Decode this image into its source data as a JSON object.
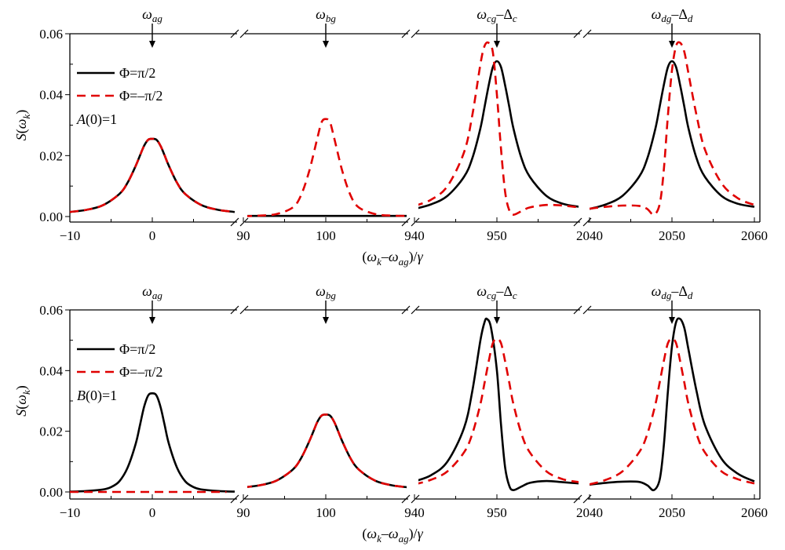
{
  "chart_data": [
    {
      "type": "line",
      "panel": "top",
      "annotation": "A(0)=1",
      "annotation_italic_part": "A",
      "annotation_rest": "(0)=1",
      "ylabel": "S(ω_k)",
      "ylabel_parts": {
        "main": "S(ω",
        "sub": "k",
        "end": ")"
      },
      "xlabel": "(ω_k−ω_ag)/γ",
      "xlabel_parts": {
        "open": "(ω",
        "sub1": "k",
        "mid": "–ω",
        "sub2": "ag",
        "close": ")/γ"
      },
      "ylim": [
        0,
        0.06
      ],
      "yticks": [
        "0.00",
        "0.02",
        "0.04",
        "0.06"
      ],
      "ytick_values": [
        0,
        0.02,
        0.04,
        0.06
      ],
      "grid": false,
      "legend_position": "top-left",
      "legend": [
        {
          "label": "Φ=π/2",
          "style": "solid",
          "color": "#000000"
        },
        {
          "label": "Φ=–π/2",
          "style": "dashed",
          "color": "#e00000"
        }
      ],
      "segments": [
        {
          "xlim": [
            -10,
            10
          ],
          "xticks": [
            -10,
            0
          ],
          "xtick_labels": [
            "−10",
            "0"
          ],
          "peak_marker": {
            "x": 0,
            "label_main": "ω",
            "label_sub": "ag",
            "label_extra": "",
            "label_extra_sub": ""
          },
          "series": [
            {
              "name": "Φ=π/2",
              "x": [
                -10,
                -8,
                -6,
                -4,
                -3,
                -2,
                -1.5,
                -1,
                -0.5,
                0,
                0.5,
                1,
                1.5,
                2,
                3,
                4,
                6,
                8,
                10
              ],
              "y": [
                0.0015,
                0.0022,
                0.0037,
                0.0074,
                0.0111,
                0.0167,
                0.02,
                0.0232,
                0.0252,
                0.0255,
                0.0252,
                0.0232,
                0.02,
                0.0167,
                0.0111,
                0.0074,
                0.0037,
                0.0022,
                0.0015
              ]
            },
            {
              "name": "Φ=–π/2",
              "x": [
                -10,
                -8,
                -6,
                -4,
                -3,
                -2,
                -1.5,
                -1,
                -0.5,
                0,
                0.5,
                1,
                1.5,
                2,
                3,
                4,
                6,
                8,
                10
              ],
              "y": [
                0.0015,
                0.0022,
                0.0037,
                0.0074,
                0.0111,
                0.0167,
                0.02,
                0.0232,
                0.0252,
                0.0255,
                0.0252,
                0.0232,
                0.02,
                0.0167,
                0.0111,
                0.0074,
                0.0037,
                0.0022,
                0.0015
              ]
            }
          ]
        },
        {
          "xlim": [
            90,
            110
          ],
          "xticks": [
            90,
            100
          ],
          "xtick_labels": [
            "90",
            "100"
          ],
          "peak_marker": {
            "x": 100,
            "label_main": "ω",
            "label_sub": "bg",
            "label_extra": "",
            "label_extra_sub": ""
          },
          "series": [
            {
              "name": "Φ=π/2",
              "x": [
                90.5,
                110
              ],
              "y": [
                0.0002,
                0.0002
              ]
            },
            {
              "name": "Φ=–π/2",
              "x": [
                90,
                92,
                94,
                96,
                97,
                98,
                99,
                99.5,
                100,
                100.5,
                101,
                102,
                103,
                104,
                106,
                108,
                110
              ],
              "y": [
                0.0001,
                0.0003,
                0.0008,
                0.003,
                0.007,
                0.015,
                0.026,
                0.031,
                0.032,
                0.031,
                0.026,
                0.015,
                0.007,
                0.003,
                0.0008,
                0.0003,
                0.0002
              ]
            }
          ]
        },
        {
          "xlim": [
            940,
            960
          ],
          "xticks": [
            940,
            950
          ],
          "xtick_labels": [
            "940",
            "950"
          ],
          "peak_marker": {
            "x": 950,
            "label_main": "ω",
            "label_sub": "cg",
            "label_extra": "–Δ",
            "label_extra_sub": "c"
          },
          "series": [
            {
              "name": "Φ=π/2",
              "x": [
                940,
                942,
                944,
                946,
                947,
                948,
                948.5,
                949,
                949.5,
                950,
                950.5,
                951,
                951.5,
                952,
                953,
                954,
                956,
                958,
                960
              ],
              "y": [
                0.0025,
                0.004,
                0.0068,
                0.013,
                0.019,
                0.029,
                0.036,
                0.043,
                0.049,
                0.051,
                0.049,
                0.043,
                0.036,
                0.029,
                0.019,
                0.013,
                0.0068,
                0.0042,
                0.0032
              ]
            },
            {
              "name": "Φ=–π/2",
              "x": [
                940,
                942,
                944,
                946,
                947,
                948,
                948.5,
                949,
                949.5,
                950,
                950.5,
                951,
                951.5,
                952,
                953,
                954,
                956,
                958,
                960
              ],
              "y": [
                0.0035,
                0.0055,
                0.01,
                0.021,
                0.033,
                0.05,
                0.056,
                0.057,
                0.054,
                0.04,
                0.022,
                0.008,
                0.002,
                0.0006,
                0.0018,
                0.003,
                0.0038,
                0.0036,
                0.003
              ]
            }
          ]
        },
        {
          "xlim": [
            2040,
            2060
          ],
          "xticks": [
            2040,
            2050,
            2060
          ],
          "xtick_labels": [
            "2040",
            "2050",
            "2060"
          ],
          "peak_marker": {
            "x": 2050,
            "label_main": "ω",
            "label_sub": "dg",
            "label_extra": "–Δ",
            "label_extra_sub": "d"
          },
          "series": [
            {
              "name": "Φ=π/2",
              "x": [
                2040,
                2042,
                2044,
                2046,
                2047,
                2048,
                2048.5,
                2049,
                2049.5,
                2050,
                2050.5,
                2051,
                2051.5,
                2052,
                2053,
                2054,
                2056,
                2058,
                2060
              ],
              "y": [
                0.0025,
                0.004,
                0.0068,
                0.013,
                0.019,
                0.029,
                0.036,
                0.043,
                0.049,
                0.051,
                0.049,
                0.043,
                0.036,
                0.029,
                0.019,
                0.013,
                0.0068,
                0.0042,
                0.0032
              ]
            },
            {
              "name": "Φ=–π/2",
              "x": [
                2040,
                2042,
                2044,
                2046,
                2047,
                2047.8,
                2048.5,
                2049,
                2049.5,
                2050,
                2050.5,
                2051,
                2051.5,
                2052,
                2053,
                2054,
                2056,
                2058,
                2060
              ],
              "y": [
                0.0026,
                0.0032,
                0.0036,
                0.0035,
                0.0025,
                0.0006,
                0.004,
                0.015,
                0.033,
                0.048,
                0.056,
                0.057,
                0.054,
                0.047,
                0.033,
                0.022,
                0.011,
                0.006,
                0.0038
              ]
            }
          ]
        }
      ]
    },
    {
      "type": "line",
      "panel": "bottom",
      "annotation": "B(0)=1",
      "annotation_italic_part": "B",
      "annotation_rest": "(0)=1",
      "ylabel": "S(ω_k)",
      "ylabel_parts": {
        "main": "S(ω",
        "sub": "k",
        "end": ")"
      },
      "xlabel": "(ω_k−ω_ag)/γ",
      "xlabel_parts": {
        "open": "(ω",
        "sub1": "k",
        "mid": "–ω",
        "sub2": "ag",
        "close": ")/γ"
      },
      "ylim": [
        0,
        0.06
      ],
      "yticks": [
        "0.00",
        "0.02",
        "0.04",
        "0.06"
      ],
      "ytick_values": [
        0,
        0.02,
        0.04,
        0.06
      ],
      "grid": false,
      "legend_position": "top-left",
      "legend": [
        {
          "label": "Φ=π/2",
          "style": "solid",
          "color": "#000000"
        },
        {
          "label": "Φ=–π/2",
          "style": "dashed",
          "color": "#e00000"
        }
      ],
      "segments": [
        {
          "xlim": [
            -10,
            10
          ],
          "xticks": [
            -10,
            0
          ],
          "xtick_labels": [
            "−10",
            "0"
          ],
          "peak_marker": {
            "x": 0,
            "label_main": "ω",
            "label_sub": "ag",
            "label_extra": "",
            "label_extra_sub": ""
          },
          "series": [
            {
              "name": "Φ=π/2",
              "x": [
                -10,
                -8,
                -6,
                -5,
                -4,
                -3,
                -2,
                -1.5,
                -1,
                -0.5,
                0,
                0.5,
                1,
                1.5,
                2,
                3,
                4,
                5,
                6,
                8,
                10
              ],
              "y": [
                0.0001,
                0.0003,
                0.0008,
                0.0016,
                0.0035,
                0.008,
                0.016,
                0.022,
                0.028,
                0.0318,
                0.0325,
                0.0318,
                0.028,
                0.022,
                0.016,
                0.008,
                0.0035,
                0.0016,
                0.0008,
                0.0003,
                0.0001
              ]
            },
            {
              "name": "Φ=–π/2",
              "x": [
                -10,
                9
              ],
              "y": [
                0.0,
                0.0
              ]
            }
          ]
        },
        {
          "xlim": [
            90,
            110
          ],
          "xticks": [
            90,
            100
          ],
          "xtick_labels": [
            "90",
            "100"
          ],
          "peak_marker": {
            "x": 100,
            "label_main": "ω",
            "label_sub": "bg",
            "label_extra": "",
            "label_extra_sub": ""
          },
          "series": [
            {
              "name": "Φ=π/2",
              "x": [
                90,
                92,
                94,
                96,
                97,
                98,
                98.5,
                99,
                99.5,
                100,
                100.5,
                101,
                101.5,
                102,
                103,
                104,
                106,
                108,
                110
              ],
              "y": [
                0.0015,
                0.0022,
                0.0037,
                0.0074,
                0.0111,
                0.0167,
                0.02,
                0.0232,
                0.0252,
                0.0255,
                0.0252,
                0.0232,
                0.02,
                0.0167,
                0.0111,
                0.0074,
                0.0037,
                0.0022,
                0.0015
              ]
            },
            {
              "name": "Φ=–π/2",
              "x": [
                90,
                92,
                94,
                96,
                97,
                98,
                98.5,
                99,
                99.5,
                100,
                100.5,
                101,
                101.5,
                102,
                103,
                104,
                106,
                108,
                110
              ],
              "y": [
                0.0015,
                0.0022,
                0.0037,
                0.0074,
                0.0111,
                0.0167,
                0.02,
                0.0232,
                0.0252,
                0.0255,
                0.0252,
                0.0232,
                0.02,
                0.0167,
                0.0111,
                0.0074,
                0.0037,
                0.0022,
                0.0015
              ]
            }
          ]
        },
        {
          "xlim": [
            940,
            960
          ],
          "xticks": [
            940,
            950
          ],
          "xtick_labels": [
            "940",
            "950"
          ],
          "peak_marker": {
            "x": 950,
            "label_main": "ω",
            "label_sub": "cg",
            "label_extra": "–Δ",
            "label_extra_sub": "c"
          },
          "series": [
            {
              "name": "Φ=π/2",
              "x": [
                940,
                942,
                944,
                946,
                947,
                948,
                948.5,
                948.8,
                949.3,
                950,
                950.5,
                951,
                951.5,
                952,
                953,
                954,
                956,
                958,
                960
              ],
              "y": [
                0.0035,
                0.0055,
                0.01,
                0.021,
                0.033,
                0.05,
                0.056,
                0.057,
                0.054,
                0.04,
                0.022,
                0.008,
                0.002,
                0.0006,
                0.0018,
                0.003,
                0.0036,
                0.0032,
                0.0028
              ]
            },
            {
              "name": "Φ=–π/2",
              "x": [
                940,
                942,
                944,
                946,
                947,
                948,
                948.5,
                949,
                949.5,
                950,
                950.5,
                951,
                951.5,
                952,
                953,
                954,
                956,
                958,
                960
              ],
              "y": [
                0.0025,
                0.004,
                0.0068,
                0.013,
                0.019,
                0.029,
                0.036,
                0.043,
                0.049,
                0.0505,
                0.049,
                0.043,
                0.036,
                0.029,
                0.019,
                0.013,
                0.0068,
                0.0042,
                0.0032
              ]
            }
          ]
        },
        {
          "xlim": [
            2040,
            2060
          ],
          "xticks": [
            2040,
            2050,
            2060
          ],
          "xtick_labels": [
            "2040",
            "2050",
            "2060"
          ],
          "peak_marker": {
            "x": 2050,
            "label_main": "ω",
            "label_sub": "dg",
            "label_extra": "–Δ",
            "label_extra_sub": "d"
          },
          "series": [
            {
              "name": "Φ=π/2",
              "x": [
                2040,
                2042,
                2044,
                2046,
                2047,
                2047.8,
                2048.5,
                2049,
                2049.5,
                2050,
                2050.5,
                2051,
                2051.5,
                2052,
                2053,
                2054,
                2056,
                2058,
                2060
              ],
              "y": [
                0.0024,
                0.003,
                0.0034,
                0.0033,
                0.0022,
                0.0006,
                0.004,
                0.015,
                0.033,
                0.048,
                0.056,
                0.057,
                0.054,
                0.047,
                0.033,
                0.022,
                0.011,
                0.006,
                0.0035
              ]
            },
            {
              "name": "Φ=–π/2",
              "x": [
                2040,
                2042,
                2044,
                2046,
                2047,
                2048,
                2048.5,
                2049,
                2049.5,
                2050,
                2050.5,
                2051,
                2051.5,
                2052,
                2053,
                2054,
                2056,
                2058,
                2060
              ],
              "y": [
                0.0025,
                0.004,
                0.0068,
                0.013,
                0.019,
                0.029,
                0.036,
                0.043,
                0.049,
                0.0505,
                0.049,
                0.043,
                0.036,
                0.029,
                0.019,
                0.013,
                0.0068,
                0.0042,
                0.0028
              ]
            }
          ]
        }
      ]
    }
  ]
}
